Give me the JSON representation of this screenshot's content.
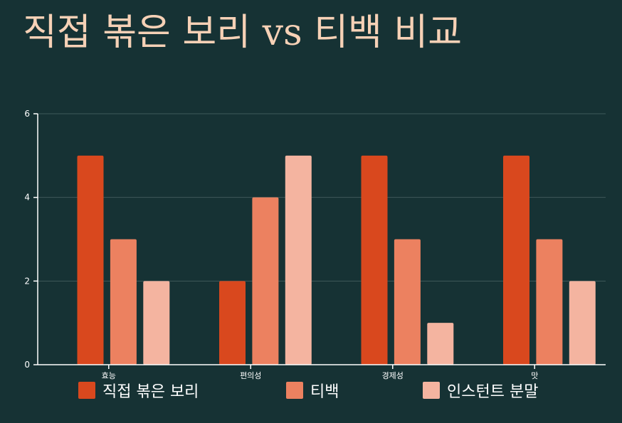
{
  "title": "직접 볶은 보리 vs 티백 비교",
  "colors": {
    "background": "#163234",
    "title": "#f6d1b6",
    "axis": "#ffffff",
    "grid": "#3f5a5a"
  },
  "chart_data": {
    "type": "bar",
    "title": "직접 볶은 보리 vs 티백 비교",
    "xlabel": "",
    "ylabel": "",
    "categories": [
      "효능",
      "편의성",
      "경제성",
      "맛"
    ],
    "ylim": [
      0,
      6
    ],
    "yticks": [
      0,
      2,
      4,
      6
    ],
    "grid": true,
    "legend_position": "bottom",
    "series": [
      {
        "name": "직접 볶은 보리",
        "color": "#d9481e",
        "values": [
          5,
          2,
          5,
          5
        ]
      },
      {
        "name": "티백",
        "color": "#ec8160",
        "values": [
          3,
          4,
          3,
          3
        ]
      },
      {
        "name": "인스턴트 분말",
        "color": "#f4b4a0",
        "values": [
          2,
          5,
          1,
          2
        ]
      }
    ]
  }
}
